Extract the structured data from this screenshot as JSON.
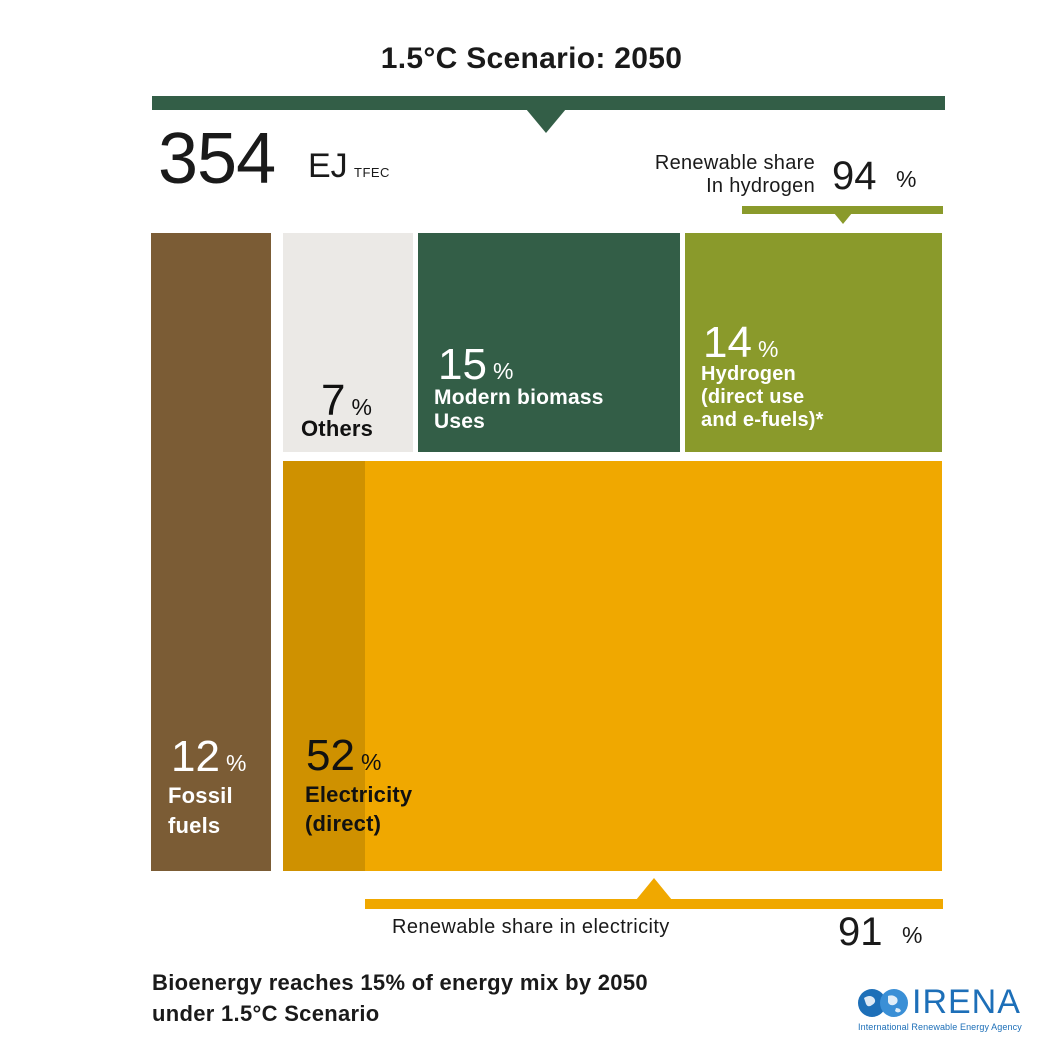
{
  "title": "1.5°C Scenario: 2050",
  "total": {
    "value": "354",
    "unit": "EJ",
    "sub": "TFEC"
  },
  "hydrogen_share": {
    "label_line1": "Renewable share",
    "label_line2": "In hydrogen",
    "value": "94",
    "pct": "%"
  },
  "electricity_share": {
    "label": "Renewable share in electricity",
    "value": "91",
    "pct": "%"
  },
  "caption": {
    "line1": "Bioenergy reaches 15% of energy mix by 2050",
    "line2": "under 1.5°C Scenario"
  },
  "logo": {
    "name": "IRENA",
    "sub": "International Renewable Energy Agency"
  },
  "colors": {
    "fossil": "#7b5c35",
    "others": "#ebe9e6",
    "biomass": "#335e47",
    "hydrogen": "#8a9a2b",
    "electricity": "#f0a800",
    "electricity_nonrenewable": "#cf9100"
  },
  "chart_data": {
    "type": "treemap",
    "title": "1.5°C Scenario: 2050",
    "total": {
      "value": 354,
      "unit": "EJ",
      "qualifier": "TFEC"
    },
    "segments": [
      {
        "name_lines": [
          "Fossil",
          "fuels"
        ],
        "value": 12,
        "unit": "%"
      },
      {
        "name_lines": [
          "Others"
        ],
        "value": 7,
        "unit": "%"
      },
      {
        "name_lines": [
          "Modern biomass",
          "Uses"
        ],
        "value": 15,
        "unit": "%"
      },
      {
        "name_lines": [
          "Hydrogen",
          "(direct use",
          "and e-fuels)*"
        ],
        "value": 14,
        "unit": "%"
      },
      {
        "name_lines": [
          "Electricity",
          "(direct)"
        ],
        "value": 52,
        "unit": "%"
      }
    ],
    "renewable_shares": [
      {
        "segment": "Hydrogen",
        "value": 94,
        "unit": "%"
      },
      {
        "segment": "Electricity",
        "value": 91,
        "unit": "%"
      }
    ]
  }
}
